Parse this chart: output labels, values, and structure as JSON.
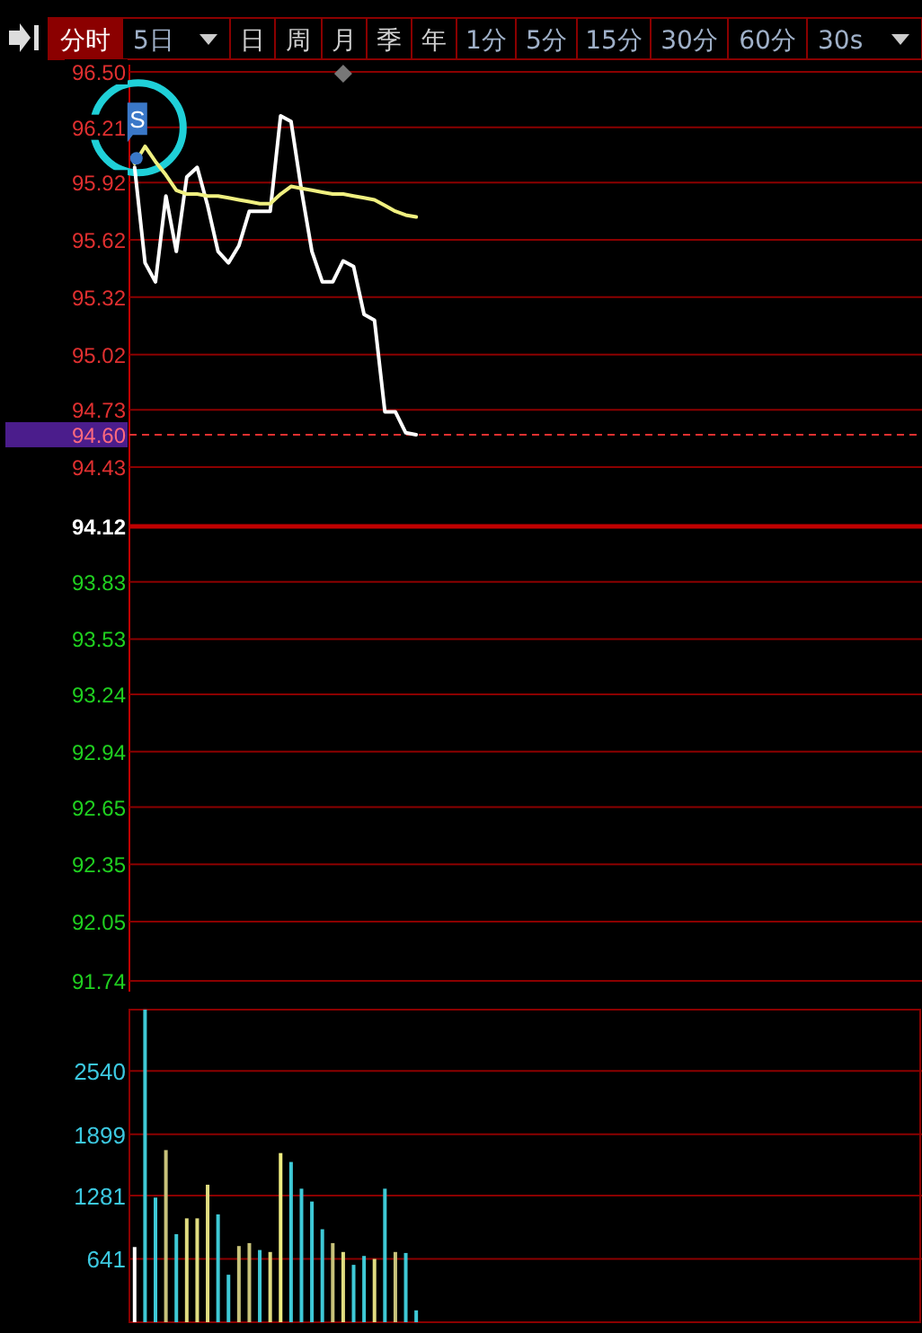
{
  "chart_data": [
    {
      "type": "other",
      "annotations": [
        "分时",
        "5日",
        "日",
        "周",
        "月",
        "季",
        "年",
        "1分",
        "5分",
        "15分",
        "30分",
        "60分",
        "30s"
      ]
    },
    {
      "type": "line",
      "categories": [
        null,
        null,
        null,
        null,
        null,
        null,
        null,
        null,
        null,
        null,
        null,
        null,
        null,
        null,
        null,
        null,
        null,
        null,
        null,
        null,
        null,
        null,
        null,
        null,
        null,
        null,
        null,
        null,
        null,
        null,
        null,
        null,
        null,
        null,
        null,
        null,
        null,
        null,
        null,
        null,
        null,
        null,
        null,
        null,
        null,
        null,
        null,
        null,
        null,
        null,
        null,
        null,
        null,
        null,
        null,
        null,
        null,
        null,
        null,
        null,
        null,
        null,
        null,
        null,
        null,
        null,
        null,
        null,
        null,
        null,
        null,
        null,
        null,
        null,
        null,
        null
      ],
      "series": [
        {
          "color": "#ffffff",
          "values": [
            96.0,
            95.5,
            95.4,
            95.85,
            95.56,
            95.95,
            96.0,
            95.8,
            95.56,
            95.5,
            95.59,
            95.77,
            95.77,
            95.77,
            96.27,
            96.24,
            95.88,
            95.56,
            95.4,
            95.4,
            95.51,
            95.48,
            95.23,
            95.2,
            94.72,
            94.72,
            94.61,
            94.6,
            null,
            null,
            null,
            null,
            null,
            null,
            null,
            null,
            null,
            null,
            null,
            null,
            null,
            null,
            null,
            null,
            null,
            null,
            null,
            null,
            null,
            null,
            null,
            null,
            null,
            null,
            null,
            null,
            null,
            null,
            null,
            null,
            null,
            null,
            null,
            null,
            null,
            null,
            null,
            null,
            null,
            null,
            null,
            null,
            null,
            null,
            null,
            null
          ]
        },
        {
          "color": "#f0f080",
          "values": [
            96.02,
            96.11,
            96.03,
            95.96,
            95.88,
            95.86,
            95.86,
            95.85,
            95.85,
            95.84,
            95.83,
            95.82,
            95.81,
            95.81,
            95.86,
            95.9,
            95.89,
            95.88,
            95.87,
            95.86,
            95.86,
            95.85,
            95.84,
            95.83,
            95.8,
            95.77,
            95.75,
            95.74,
            null,
            null,
            null,
            null,
            null,
            null,
            null,
            null,
            null,
            null,
            null,
            null,
            null,
            null,
            null,
            null,
            null,
            null,
            null,
            null,
            null,
            null,
            null,
            null,
            null,
            null,
            null,
            null,
            null,
            null,
            null,
            null,
            null,
            null,
            null,
            null,
            null,
            null,
            null,
            null,
            null,
            null,
            null,
            null,
            null,
            null,
            null,
            null
          ]
        }
      ],
      "ylim": [
        91.74,
        96.5
      ],
      "yticks": [
        {
          "value": 96.5,
          "label": "96.50"
        },
        96.21,
        95.92,
        95.62,
        95.32,
        95.02,
        94.73,
        94.43,
        94.12,
        93.83,
        93.53,
        93.24,
        92.94,
        92.65,
        92.35,
        92.05,
        91.74
      ],
      "grid": "y",
      "marker": "none",
      "tick_labels": "y",
      "ref_lines": [
        {
          "axis": "y",
          "value": 94.6,
          "label": "94.60",
          "color": "#e03030",
          "line_style": "dashed"
        },
        {
          "axis": "y",
          "value": 94.12,
          "color": "#c00000",
          "line_style": "solid"
        }
      ],
      "annotations": [
        "S"
      ]
    },
    {
      "type": "bar",
      "categories": [
        null,
        null,
        null,
        null,
        null,
        null,
        null,
        null,
        null,
        null,
        null,
        null,
        null,
        null,
        null,
        null,
        null,
        null,
        null,
        null,
        null,
        null,
        null,
        null,
        null,
        null,
        null,
        null,
        null,
        null,
        null,
        null,
        null,
        null,
        null,
        null,
        null,
        null,
        null,
        null,
        null,
        null,
        null,
        null,
        null,
        null,
        null,
        null,
        null,
        null,
        null,
        null,
        null,
        null,
        null,
        null,
        null,
        null,
        null,
        null,
        null,
        null,
        null,
        null,
        null,
        null,
        null,
        null,
        null,
        null,
        null,
        null,
        null,
        null,
        null,
        null
      ],
      "values": [
        760,
        3160,
        1260,
        1740,
        890,
        1050,
        1050,
        1390,
        1090,
        480,
        770,
        800,
        730,
        710,
        1710,
        1620,
        1350,
        1220,
        940,
        800,
        710,
        580,
        670,
        640,
        1350,
        710,
        700,
        120,
        null,
        null,
        null,
        null,
        null,
        null,
        null,
        null,
        null,
        null,
        null,
        null,
        null,
        null,
        null,
        null,
        null,
        null,
        null,
        null,
        null,
        null,
        null,
        null,
        null,
        null,
        null,
        null,
        null,
        null,
        null,
        null,
        null,
        null,
        null,
        null,
        null,
        null,
        null,
        null,
        null,
        null,
        null,
        null,
        null,
        null,
        null,
        null
      ],
      "colors": [
        "#ffffff",
        "#3ec9d6",
        "#3ec9d6",
        "#c8c27a",
        "#3ec9d6",
        "#e0dc80",
        "#e0dc80",
        "#e0dc80",
        "#3ec9d6",
        "#3ec9d6",
        "#c8c27a",
        "#c8c27a",
        "#3ec9d6",
        "#e0dc80",
        "#f0ee80",
        "#3ec9d6",
        "#3ec9d6",
        "#3ec9d6",
        "#3ec9d6",
        "#c8c27a",
        "#e0dc80",
        "#3ec9d6",
        "#3ec9d6",
        "#e0dc80",
        "#3ec9d6",
        "#c8c27a",
        "#3ec9d6",
        "#3ec9d6",
        null,
        null,
        null,
        null,
        null,
        null,
        null,
        null,
        null,
        null,
        null,
        null,
        null,
        null,
        null,
        null,
        null,
        null,
        null,
        null,
        null,
        null,
        null,
        null,
        null,
        null,
        null,
        null,
        null,
        null,
        null,
        null,
        null,
        null,
        null,
        null,
        null,
        null,
        null,
        null,
        null,
        null,
        null,
        null,
        null,
        null,
        null,
        null
      ],
      "ylim": [
        0,
        3160
      ],
      "yticks": [
        641,
        1281,
        1899,
        2540
      ],
      "grid": "y",
      "tick_labels": "y"
    }
  ]
}
